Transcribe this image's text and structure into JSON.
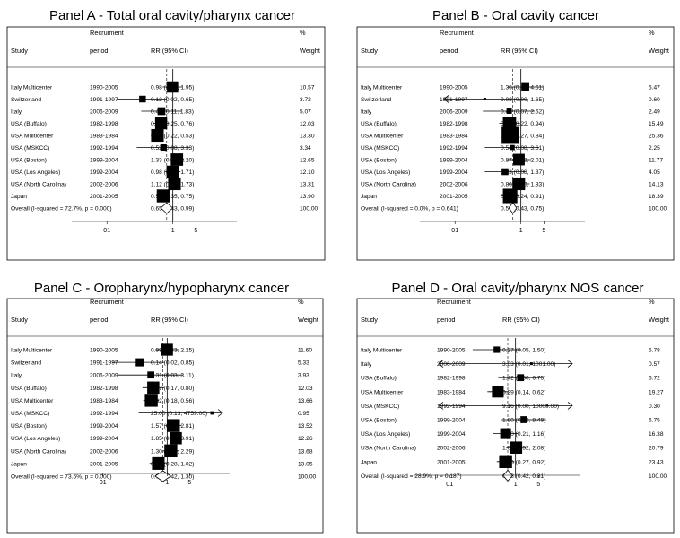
{
  "chart_data": [
    {
      "type": "forest",
      "title": "Panel A - Total oral cavity/pharynx cancer",
      "headers": {
        "study": "Study",
        "recruitment_line1": "Recruiment",
        "recruitment_line2": "period",
        "ci": "RR (95% CI)",
        "weight_line1": "%",
        "weight_line2": "Weight"
      },
      "scale": "log",
      "xlim": [
        0.003,
        60
      ],
      "xticks": [
        "01",
        "1",
        "5"
      ],
      "xtick_values": [
        0.01,
        1,
        5
      ],
      "null_line": 1,
      "studies": [
        {
          "study": "Italy Multicenter",
          "period": "1990-2005",
          "ci_text": "0.98 (0.49, 1.95)",
          "rr": 0.98,
          "lo": 0.49,
          "hi": 1.95,
          "weight": "10.57"
        },
        {
          "study": "Switzerland",
          "period": "1991-1997",
          "ci_text": "0.12 (0.02, 0.65)",
          "rr": 0.12,
          "lo": 0.02,
          "hi": 0.65,
          "weight": "3.72"
        },
        {
          "study": "Italy",
          "period": "2006-2009",
          "ci_text": "0.45 (0.11, 1.83)",
          "rr": 0.45,
          "lo": 0.11,
          "hi": 1.83,
          "weight": "5.07"
        },
        {
          "study": "USA (Buffalo)",
          "period": "1982-1998",
          "ci_text": "0.44 (0.25, 0.76)",
          "rr": 0.44,
          "lo": 0.25,
          "hi": 0.76,
          "weight": "12.03"
        },
        {
          "study": "USA Multicenter",
          "period": "1983-1984",
          "ci_text": "0.34 (0.22, 0.53)",
          "rr": 0.34,
          "lo": 0.22,
          "hi": 0.53,
          "weight": "13.30"
        },
        {
          "study": "USA (MSKCC)",
          "period": "1992-1994",
          "ci_text": "0.52 (0.08, 3.33)",
          "rr": 0.52,
          "lo": 0.08,
          "hi": 3.33,
          "weight": "3.34"
        },
        {
          "study": "USA (Boston)",
          "period": "1999-2004",
          "ci_text": "1.33 (0.81, 2.20)",
          "rr": 1.33,
          "lo": 0.81,
          "hi": 2.2,
          "weight": "12.65"
        },
        {
          "study": "USA (Los Angeles)",
          "period": "1999-2004",
          "ci_text": "0.98 (0.57, 1.71)",
          "rr": 0.98,
          "lo": 0.57,
          "hi": 1.71,
          "weight": "12.10"
        },
        {
          "study": "USA (North Carolina)",
          "period": "2002-2006",
          "ci_text": "1.12 (0.72, 1.73)",
          "rr": 1.12,
          "lo": 0.72,
          "hi": 1.73,
          "weight": "13.31"
        },
        {
          "study": "Japan",
          "period": "2001-2005",
          "ci_text": "0.51 (0.35, 0.75)",
          "rr": 0.51,
          "lo": 0.35,
          "hi": 0.75,
          "weight": "13.90"
        }
      ],
      "overall": {
        "label": "Overall  (I-squared = 72.7%, p = 0.000)",
        "ci_text": "0.65 (0.43, 0.99)",
        "rr": 0.65,
        "lo": 0.43,
        "hi": 0.99,
        "weight": "100.00"
      }
    },
    {
      "type": "forest",
      "title": "Panel B - Oral cavity cancer",
      "headers": {
        "study": "Study",
        "recruitment_line1": "Recruiment",
        "recruitment_line2": "period",
        "ci": "RR (95% CI)",
        "weight_line1": "%",
        "weight_line2": "Weight"
      },
      "scale": "log",
      "xlim": [
        0.003,
        60
      ],
      "xticks": [
        "01",
        "1",
        "5"
      ],
      "xtick_values": [
        0.01,
        1,
        5
      ],
      "null_line": 1,
      "studies": [
        {
          "study": "Italy Multicenter",
          "period": "1990-2005",
          "ci_text": "1.36 (0.40, 4.61)",
          "rr": 1.36,
          "lo": 0.4,
          "hi": 4.61,
          "weight": "5.47"
        },
        {
          "study": "Switzerland",
          "period": "1991-1997",
          "ci_text": "0.08 (0.00, 1.65)",
          "rr": 0.08,
          "lo": 0.0,
          "hi": 1.65,
          "weight": "0.60",
          "arrow_left": true
        },
        {
          "study": "Italy",
          "period": "2006-2009",
          "ci_text": "0.44 (0.07, 2.62)",
          "rr": 0.44,
          "lo": 0.07,
          "hi": 2.62,
          "weight": "2.49"
        },
        {
          "study": "USA (Buffalo)",
          "period": "1982-1998",
          "ci_text": "0.45 (0.22, 0.94)",
          "rr": 0.45,
          "lo": 0.22,
          "hi": 0.94,
          "weight": "15.49"
        },
        {
          "study": "USA Multicenter",
          "period": "1983-1984",
          "ci_text": "0.47 (0.27, 0.84)",
          "rr": 0.47,
          "lo": 0.27,
          "hi": 0.84,
          "weight": "25.36"
        },
        {
          "study": "USA (MSKCC)",
          "period": "1992-1994",
          "ci_text": "0.54 (0.08, 3.61)",
          "rr": 0.54,
          "lo": 0.08,
          "hi": 3.61,
          "weight": "2.25"
        },
        {
          "study": "USA (Boston)",
          "period": "1999-2004",
          "ci_text": "0.87 (0.38, 2.01)",
          "rr": 0.87,
          "lo": 0.38,
          "hi": 2.01,
          "weight": "11.77"
        },
        {
          "study": "USA (Los Angeles)",
          "period": "1999-2004",
          "ci_text": "0.33 (0.08, 1.37)",
          "rr": 0.33,
          "lo": 0.08,
          "hi": 1.37,
          "weight": "4.05"
        },
        {
          "study": "USA (North Carolina)",
          "period": "2002-2006",
          "ci_text": "0.86 (0.40, 1.83)",
          "rr": 0.86,
          "lo": 0.4,
          "hi": 1.83,
          "weight": "14.13"
        },
        {
          "study": "Japan",
          "period": "2001-2005",
          "ci_text": "0.47 (0.24, 0.91)",
          "rr": 0.47,
          "lo": 0.24,
          "hi": 0.91,
          "weight": "18.39"
        }
      ],
      "overall": {
        "label": "Overall  (I-squared = 0.0%, p = 0.641)",
        "ci_text": "0.57 (0.43, 0.75)",
        "rr": 0.57,
        "lo": 0.43,
        "hi": 0.75,
        "weight": "100.00"
      }
    },
    {
      "type": "forest",
      "title": "Panel C - Oropharynx/hypopharynx cancer",
      "headers": {
        "study": "Study",
        "recruitment_line1": "Recruiment",
        "recruitment_line2": "period",
        "ci": "RR (95% CI)",
        "weight_line1": "%",
        "weight_line2": "Weight"
      },
      "scale": "log",
      "xlim": [
        0.003,
        60
      ],
      "xticks": [
        "01",
        "1",
        "5"
      ],
      "xtick_values": [
        0.01,
        1,
        5
      ],
      "null_line": 1,
      "studies": [
        {
          "study": "Italy Multicenter",
          "period": "1990-2005",
          "ci_text": "0.99 (0.43, 2.25)",
          "rr": 0.99,
          "lo": 0.43,
          "hi": 2.25,
          "weight": "11.60"
        },
        {
          "study": "Switzerland",
          "period": "1991-1997",
          "ci_text": "0.14 (0.02, 0.85)",
          "rr": 0.14,
          "lo": 0.02,
          "hi": 0.85,
          "weight": "5.33"
        },
        {
          "study": "Italy",
          "period": "2006-2009",
          "ci_text": "0.31 (0.03, 3.11)",
          "rr": 0.31,
          "lo": 0.03,
          "hi": 3.11,
          "weight": "3.93"
        },
        {
          "study": "USA (Buffalo)",
          "period": "1982-1998",
          "ci_text": "0.37 (0.17, 0.80)",
          "rr": 0.37,
          "lo": 0.17,
          "hi": 0.8,
          "weight": "12.03"
        },
        {
          "study": "USA Multicenter",
          "period": "1983-1984",
          "ci_text": "0.32 (0.18, 0.56)",
          "rr": 0.32,
          "lo": 0.18,
          "hi": 0.56,
          "weight": "13.66"
        },
        {
          "study": "USA (MSKCC)",
          "period": "1992-1994",
          "ci_text": "25.00 (0.13, 4759.00)",
          "rr": 25.0,
          "lo": 0.13,
          "hi": 4759.0,
          "weight": "0.95",
          "arrow_right": true
        },
        {
          "study": "USA (Boston)",
          "period": "1999-2004",
          "ci_text": "1.57 (0.87, 2.81)",
          "rr": 1.57,
          "lo": 0.87,
          "hi": 2.81,
          "weight": "13.52"
        },
        {
          "study": "USA (Los Angeles)",
          "period": "1999-2004",
          "ci_text": "1.85 (0.88, 3.91)",
          "rr": 1.85,
          "lo": 0.88,
          "hi": 3.91,
          "weight": "12.26"
        },
        {
          "study": "USA (North Carolina)",
          "period": "2002-2006",
          "ci_text": "1.30 (0.74, 2.29)",
          "rr": 1.3,
          "lo": 0.74,
          "hi": 2.29,
          "weight": "13.68"
        },
        {
          "study": "Japan",
          "period": "2001-2005",
          "ci_text": "0.53 (0.28, 1.02)",
          "rr": 0.53,
          "lo": 0.28,
          "hi": 1.02,
          "weight": "13.05"
        }
      ],
      "overall": {
        "label": "Overall  (I-squared = 73.5%, p = 0.000)",
        "ci_text": "0.74 (0.42, 1.30)",
        "rr": 0.74,
        "lo": 0.42,
        "hi": 1.3,
        "weight": "100.00"
      }
    },
    {
      "type": "forest",
      "title": "Panel D - Oral cavity/pharynx NOS cancer",
      "headers": {
        "study": "Study",
        "recruitment_line1": "Recruiment",
        "recruitment_line2": "period",
        "ci": "RR (95% CI)",
        "weight_line1": "%",
        "weight_line2": "Weight"
      },
      "scale": "log",
      "xlim": [
        0.003,
        60
      ],
      "xticks": [
        "01",
        "1",
        "5"
      ],
      "xtick_values": [
        0.01,
        1,
        5
      ],
      "null_line": 1,
      "studies": [
        {
          "study": "Italy Multicenter",
          "period": "1990-2005",
          "ci_text": "0.27 (0.05, 1.50)",
          "rr": 0.27,
          "lo": 0.05,
          "hi": 1.5,
          "weight": "5.78"
        },
        {
          "study": "Italy",
          "period": "2006-2009",
          "ci_text": "3.03 (0.01, 1001.00)",
          "rr": 3.03,
          "lo": 0.01,
          "hi": 1001.0,
          "weight": "0.57",
          "arrow_left": true,
          "arrow_right": true
        },
        {
          "study": "USA (Buffalo)",
          "period": "1982-1998",
          "ci_text": "1.42 (0.30, 6.75)",
          "rr": 1.42,
          "lo": 0.3,
          "hi": 6.75,
          "weight": "6.72"
        },
        {
          "study": "USA Multicenter",
          "period": "1983-1984",
          "ci_text": "0.29 (0.14, 0.62)",
          "rr": 0.29,
          "lo": 0.14,
          "hi": 0.62,
          "weight": "19.27"
        },
        {
          "study": "USA (MSKCC)",
          "period": "1992-1994",
          "ci_text": "9.16 (0.00, 10000.00)",
          "rr": 9.16,
          "lo": 0.0,
          "hi": 10000.0,
          "weight": "0.30",
          "arrow_left": true,
          "arrow_right": true,
          "no_box": true
        },
        {
          "study": "USA (Boston)",
          "period": "1999-2004",
          "ci_text": "1.80 (0.38, 8.49)",
          "rr": 1.8,
          "lo": 0.38,
          "hi": 8.49,
          "weight": "6.75"
        },
        {
          "study": "USA (Los Angeles)",
          "period": "1999-2004",
          "ci_text": "0.50 (0.21, 1.16)",
          "rr": 0.5,
          "lo": 0.21,
          "hi": 1.16,
          "weight": "16.38"
        },
        {
          "study": "USA (North Carolina)",
          "period": "2002-2006",
          "ci_text": "1.04 (0.52, 2.08)",
          "rr": 1.04,
          "lo": 0.52,
          "hi": 2.08,
          "weight": "20.79"
        },
        {
          "study": "Japan",
          "period": "2001-2005",
          "ci_text": "0.50 (0.27, 0.92)",
          "rr": 0.5,
          "lo": 0.27,
          "hi": 0.92,
          "weight": "23.43"
        }
      ],
      "overall": {
        "label": "Overall  (I-squared = 28.9%, p = 0.187)",
        "ci_text": "0.58 (0.42, 0.81)",
        "rr": 0.58,
        "lo": 0.42,
        "hi": 0.81,
        "weight": "100.00"
      }
    }
  ]
}
